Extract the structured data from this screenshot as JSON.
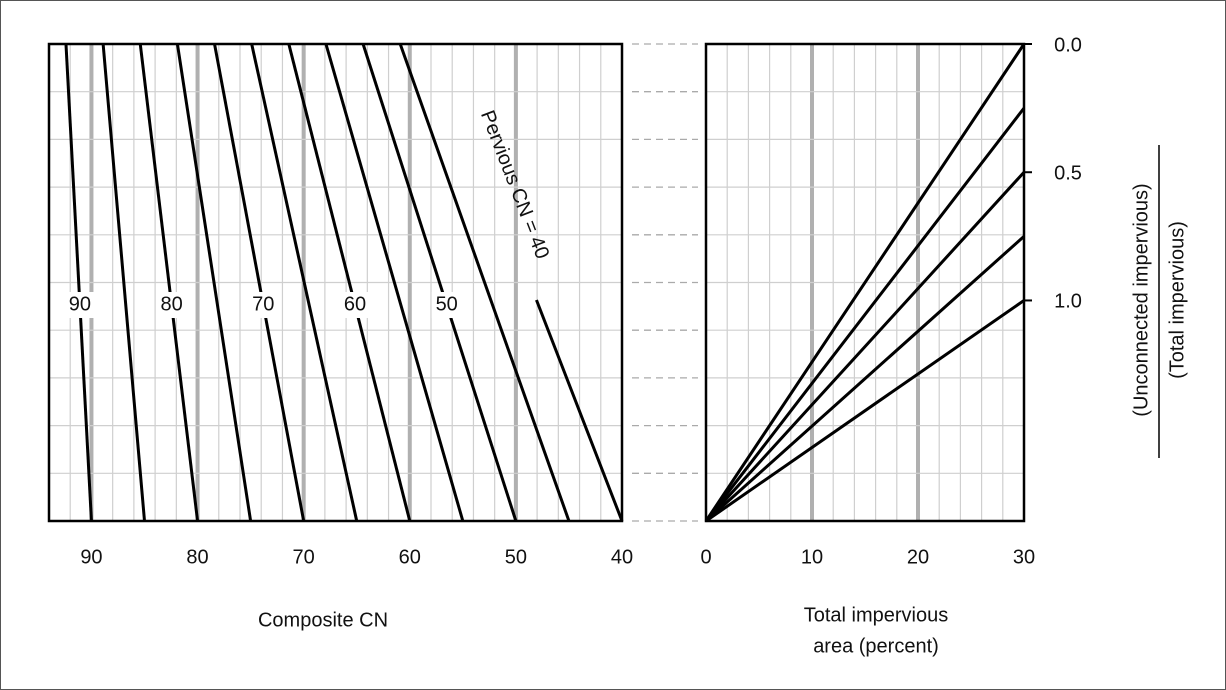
{
  "chart_data": [
    {
      "type": "composite-cn",
      "xlabel": "Composite CN",
      "xlim": [
        94,
        40
      ],
      "xticks": [
        90,
        80,
        70,
        60,
        50,
        40
      ],
      "grid_minor_step": 2,
      "grid_rows": 10,
      "lines": [
        {
          "pervious_cn": 90,
          "composite_cn_top": 92.4,
          "label": "90"
        },
        {
          "pervious_cn": 85,
          "composite_cn_top": 88.9
        },
        {
          "pervious_cn": 80,
          "composite_cn_top": 85.4,
          "label": "80"
        },
        {
          "pervious_cn": 75,
          "composite_cn_top": 81.9
        },
        {
          "pervious_cn": 70,
          "composite_cn_top": 78.4,
          "label": "70"
        },
        {
          "pervious_cn": 65,
          "composite_cn_top": 74.9
        },
        {
          "pervious_cn": 60,
          "composite_cn_top": 71.4,
          "label": "60"
        },
        {
          "pervious_cn": 55,
          "composite_cn_top": 67.9
        },
        {
          "pervious_cn": 50,
          "composite_cn_top": 64.4,
          "label": "50"
        },
        {
          "pervious_cn": 45,
          "composite_cn_top": 60.9
        },
        {
          "pervious_cn": 40,
          "composite_cn_top": 57.4,
          "label": "Pervious CN = 40",
          "label_along_line": true
        }
      ]
    },
    {
      "type": "ratio-lines",
      "xlabel": [
        "Total impervious",
        "area (percent)"
      ],
      "xlim": [
        0,
        30
      ],
      "xticks": [
        0,
        10,
        20,
        30
      ],
      "grid_minor_step": 2,
      "grid_rows": 10,
      "y2lim": [
        0,
        1.86
      ],
      "y2ticks": [
        {
          "value": 0,
          "label": "0.0"
        },
        {
          "value": 0.5,
          "label": "0.5"
        },
        {
          "value": 1,
          "label": "1.0"
        }
      ],
      "y2label": {
        "numerator": "(Unconnected impervious)",
        "denominator": "(Total impervious)"
      },
      "ratios": [
        0,
        0.25,
        0.5,
        0.75,
        1
      ]
    }
  ]
}
